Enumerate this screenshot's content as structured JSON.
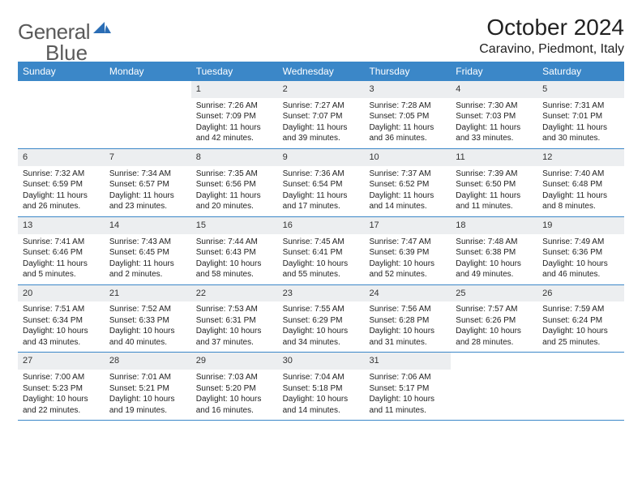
{
  "logo": {
    "general": "General",
    "blue": "Blue"
  },
  "title": "October 2024",
  "location": "Caravino, Piedmont, Italy",
  "colors": {
    "header_bg": "#3b87c8",
    "header_text": "#ffffff",
    "daynum_bg": "#eceef0",
    "text": "#222222",
    "border": "#3b87c8",
    "logo_text": "#5a5a5a",
    "logo_blue": "#2a6db5"
  },
  "day_labels": [
    "Sunday",
    "Monday",
    "Tuesday",
    "Wednesday",
    "Thursday",
    "Friday",
    "Saturday"
  ],
  "weeks": [
    [
      null,
      null,
      {
        "n": "1",
        "sr": "7:26 AM",
        "ss": "7:09 PM",
        "dl": "11 hours and 42 minutes."
      },
      {
        "n": "2",
        "sr": "7:27 AM",
        "ss": "7:07 PM",
        "dl": "11 hours and 39 minutes."
      },
      {
        "n": "3",
        "sr": "7:28 AM",
        "ss": "7:05 PM",
        "dl": "11 hours and 36 minutes."
      },
      {
        "n": "4",
        "sr": "7:30 AM",
        "ss": "7:03 PM",
        "dl": "11 hours and 33 minutes."
      },
      {
        "n": "5",
        "sr": "7:31 AM",
        "ss": "7:01 PM",
        "dl": "11 hours and 30 minutes."
      }
    ],
    [
      {
        "n": "6",
        "sr": "7:32 AM",
        "ss": "6:59 PM",
        "dl": "11 hours and 26 minutes."
      },
      {
        "n": "7",
        "sr": "7:34 AM",
        "ss": "6:57 PM",
        "dl": "11 hours and 23 minutes."
      },
      {
        "n": "8",
        "sr": "7:35 AM",
        "ss": "6:56 PM",
        "dl": "11 hours and 20 minutes."
      },
      {
        "n": "9",
        "sr": "7:36 AM",
        "ss": "6:54 PM",
        "dl": "11 hours and 17 minutes."
      },
      {
        "n": "10",
        "sr": "7:37 AM",
        "ss": "6:52 PM",
        "dl": "11 hours and 14 minutes."
      },
      {
        "n": "11",
        "sr": "7:39 AM",
        "ss": "6:50 PM",
        "dl": "11 hours and 11 minutes."
      },
      {
        "n": "12",
        "sr": "7:40 AM",
        "ss": "6:48 PM",
        "dl": "11 hours and 8 minutes."
      }
    ],
    [
      {
        "n": "13",
        "sr": "7:41 AM",
        "ss": "6:46 PM",
        "dl": "11 hours and 5 minutes."
      },
      {
        "n": "14",
        "sr": "7:43 AM",
        "ss": "6:45 PM",
        "dl": "11 hours and 2 minutes."
      },
      {
        "n": "15",
        "sr": "7:44 AM",
        "ss": "6:43 PM",
        "dl": "10 hours and 58 minutes."
      },
      {
        "n": "16",
        "sr": "7:45 AM",
        "ss": "6:41 PM",
        "dl": "10 hours and 55 minutes."
      },
      {
        "n": "17",
        "sr": "7:47 AM",
        "ss": "6:39 PM",
        "dl": "10 hours and 52 minutes."
      },
      {
        "n": "18",
        "sr": "7:48 AM",
        "ss": "6:38 PM",
        "dl": "10 hours and 49 minutes."
      },
      {
        "n": "19",
        "sr": "7:49 AM",
        "ss": "6:36 PM",
        "dl": "10 hours and 46 minutes."
      }
    ],
    [
      {
        "n": "20",
        "sr": "7:51 AM",
        "ss": "6:34 PM",
        "dl": "10 hours and 43 minutes."
      },
      {
        "n": "21",
        "sr": "7:52 AM",
        "ss": "6:33 PM",
        "dl": "10 hours and 40 minutes."
      },
      {
        "n": "22",
        "sr": "7:53 AM",
        "ss": "6:31 PM",
        "dl": "10 hours and 37 minutes."
      },
      {
        "n": "23",
        "sr": "7:55 AM",
        "ss": "6:29 PM",
        "dl": "10 hours and 34 minutes."
      },
      {
        "n": "24",
        "sr": "7:56 AM",
        "ss": "6:28 PM",
        "dl": "10 hours and 31 minutes."
      },
      {
        "n": "25",
        "sr": "7:57 AM",
        "ss": "6:26 PM",
        "dl": "10 hours and 28 minutes."
      },
      {
        "n": "26",
        "sr": "7:59 AM",
        "ss": "6:24 PM",
        "dl": "10 hours and 25 minutes."
      }
    ],
    [
      {
        "n": "27",
        "sr": "7:00 AM",
        "ss": "5:23 PM",
        "dl": "10 hours and 22 minutes."
      },
      {
        "n": "28",
        "sr": "7:01 AM",
        "ss": "5:21 PM",
        "dl": "10 hours and 19 minutes."
      },
      {
        "n": "29",
        "sr": "7:03 AM",
        "ss": "5:20 PM",
        "dl": "10 hours and 16 minutes."
      },
      {
        "n": "30",
        "sr": "7:04 AM",
        "ss": "5:18 PM",
        "dl": "10 hours and 14 minutes."
      },
      {
        "n": "31",
        "sr": "7:06 AM",
        "ss": "5:17 PM",
        "dl": "10 hours and 11 minutes."
      },
      null,
      null
    ]
  ],
  "labels": {
    "sunrise": "Sunrise:",
    "sunset": "Sunset:",
    "daylight": "Daylight:"
  }
}
